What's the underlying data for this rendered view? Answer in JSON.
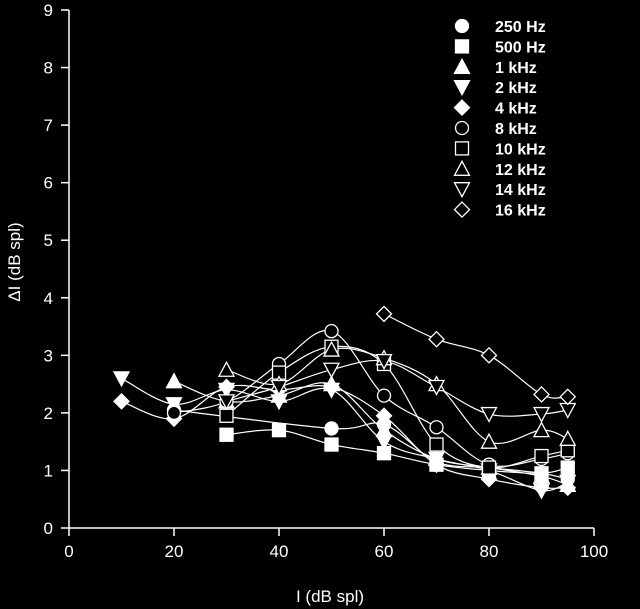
{
  "chart_data": {
    "type": "line",
    "xlabel": "I (dB spl)",
    "ylabel": "ΔI (dB spl)",
    "xlim": [
      0,
      100
    ],
    "ylim": [
      0,
      9
    ],
    "xticks": [
      "0",
      "20",
      "40",
      "60",
      "80",
      "100"
    ],
    "yticks": [
      "0",
      "1",
      "2",
      "3",
      "4",
      "5",
      "6",
      "7",
      "8",
      "9"
    ],
    "grid": false,
    "legend_position": "top-right",
    "colors": {
      "background": "#000000",
      "foreground": "#ffffff"
    },
    "series": [
      {
        "name": "250 Hz",
        "marker": "circle",
        "filled": true,
        "x": [
          20,
          50,
          60,
          70,
          80,
          90,
          95
        ],
        "y": [
          2.05,
          1.73,
          1.8,
          1.15,
          1.05,
          0.95,
          0.85
        ]
      },
      {
        "name": "500 Hz",
        "marker": "square",
        "filled": true,
        "x": [
          30,
          40,
          50,
          60,
          70,
          80,
          90,
          95
        ],
        "y": [
          1.62,
          1.7,
          1.45,
          1.3,
          1.1,
          1.0,
          0.95,
          1.05
        ]
      },
      {
        "name": "1 kHz",
        "marker": "triangle-up",
        "filled": true,
        "x": [
          20,
          30,
          40,
          50,
          60,
          70,
          80,
          90,
          95
        ],
        "y": [
          2.55,
          2.2,
          2.3,
          2.5,
          1.7,
          1.2,
          1.05,
          0.9,
          0.75
        ]
      },
      {
        "name": "2 kHz",
        "marker": "triangle-down",
        "filled": true,
        "x": [
          10,
          20,
          30,
          40,
          50,
          60,
          70,
          80,
          90,
          95
        ],
        "y": [
          2.6,
          2.15,
          2.4,
          2.2,
          2.4,
          1.5,
          1.2,
          1.0,
          0.65,
          0.8
        ]
      },
      {
        "name": "4 kHz",
        "marker": "diamond",
        "filled": true,
        "x": [
          10,
          20,
          30,
          40,
          50,
          60,
          70,
          80,
          90,
          95
        ],
        "y": [
          2.2,
          1.9,
          2.45,
          2.4,
          2.45,
          1.95,
          1.1,
          0.85,
          0.7,
          0.7
        ]
      },
      {
        "name": "8 kHz",
        "marker": "circle",
        "filled": false,
        "x": [
          20,
          30,
          40,
          50,
          60,
          70,
          80,
          90,
          95
        ],
        "y": [
          2.0,
          2.2,
          2.85,
          3.42,
          2.3,
          1.75,
          1.1,
          1.2,
          1.3
        ]
      },
      {
        "name": "10 kHz",
        "marker": "square",
        "filled": false,
        "x": [
          30,
          40,
          50,
          60,
          70,
          80,
          90,
          95
        ],
        "y": [
          1.95,
          2.7,
          3.15,
          2.85,
          1.45,
          1.05,
          1.25,
          1.35
        ]
      },
      {
        "name": "12 kHz",
        "marker": "triangle-up",
        "filled": false,
        "x": [
          30,
          40,
          50,
          60,
          70,
          80,
          90,
          95
        ],
        "y": [
          2.75,
          2.5,
          3.1,
          2.95,
          2.5,
          1.5,
          1.7,
          1.55
        ]
      },
      {
        "name": "14 kHz",
        "marker": "triangle-down",
        "filled": false,
        "x": [
          30,
          40,
          50,
          60,
          70,
          80,
          90,
          95
        ],
        "y": [
          2.2,
          2.45,
          2.75,
          2.9,
          2.45,
          1.98,
          1.98,
          2.05
        ]
      },
      {
        "name": "16 kHz",
        "marker": "diamond",
        "filled": false,
        "x": [
          60,
          70,
          80,
          90,
          95
        ],
        "y": [
          3.72,
          3.28,
          3.0,
          2.32,
          2.28
        ]
      }
    ]
  }
}
